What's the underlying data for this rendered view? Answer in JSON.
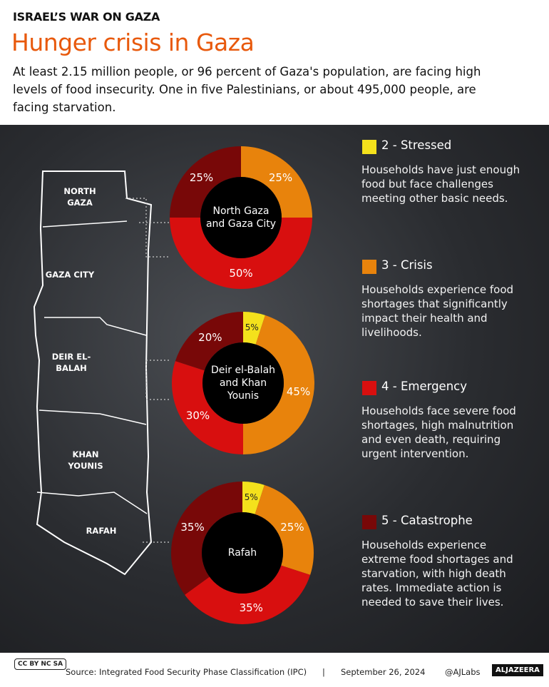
{
  "header": {
    "kicker": "ISRAEL’S WAR ON GAZA",
    "title": "Hunger crisis in Gaza",
    "subtitle": "At least 2.15 million people, or 96 percent of Gaza's population, are facing high levels of food insecurity. One in five Palestinians, or about 495,000 people, are facing starvation."
  },
  "chart_data": [
    {
      "type": "pie",
      "title": "North Gaza and Gaza City",
      "categories": [
        "3 - Crisis",
        "4 - Emergency",
        "5 - Catastrophe"
      ],
      "values": [
        25,
        50,
        25
      ],
      "value_labels": [
        "25%",
        "50%",
        "25%"
      ],
      "colors": [
        "#e8830c",
        "#d80f0f",
        "#780808"
      ]
    },
    {
      "type": "pie",
      "title": "Deir el-Balah and Khan Younis",
      "categories": [
        "2 - Stressed",
        "3 - Crisis",
        "4 - Emergency",
        "5 - Catastrophe"
      ],
      "values": [
        5,
        45,
        30,
        20
      ],
      "value_labels": [
        "5%",
        "45%",
        "30%",
        "20%"
      ],
      "colors": [
        "#f4e11c",
        "#e8830c",
        "#d80f0f",
        "#780808"
      ]
    },
    {
      "type": "pie",
      "title": "Rafah",
      "categories": [
        "2 - Stressed",
        "3 - Crisis",
        "4 - Emergency",
        "5 - Catastrophe"
      ],
      "values": [
        5,
        25,
        35,
        35
      ],
      "value_labels": [
        "5%",
        "25%",
        "35%",
        "35%"
      ],
      "colors": [
        "#f4e11c",
        "#e8830c",
        "#d80f0f",
        "#780808"
      ]
    }
  ],
  "legend": [
    {
      "name": "2 - Stressed",
      "color": "#f4e11c",
      "description": "Households have just enough food but face challenges meeting other basic needs."
    },
    {
      "name": "3 - Crisis",
      "color": "#e8830c",
      "description": "Households experience food shortages that significantly impact their health and livelihoods."
    },
    {
      "name": "4 - Emergency",
      "color": "#d80f0f",
      "description": "Households face severe food shortages, high malnutrition and even death, requiring urgent intervention."
    },
    {
      "name": "5 - Catastrophe",
      "color": "#780808",
      "description": "Households experience extreme food shortages and starvation, with high death rates. Immediate action is needed to save their lives."
    }
  ],
  "map": {
    "labels": [
      "NORTH GAZA",
      "GAZA CITY",
      "DEIR EL-BALAH",
      "KHAN YOUNIS",
      "RAFAH"
    ]
  },
  "footer": {
    "license": "CC BY NC SA",
    "source": "Source:  Integrated Food Security Phase Classification (IPC)",
    "separator": "|",
    "date": "September 26, 2024",
    "handle": "@AJLabs",
    "brand": "ALJAZEERA"
  }
}
